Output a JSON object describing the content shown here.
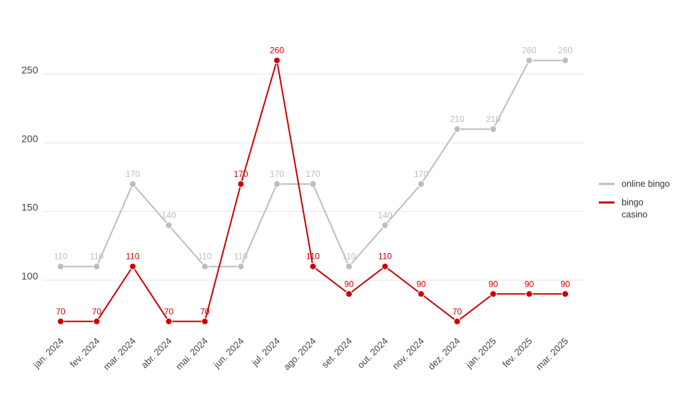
{
  "chart_data": {
    "type": "line",
    "categories": [
      "jan. 2024",
      "fev. 2024",
      "mar. 2024",
      "abr. 2024",
      "mai. 2024",
      "jun. 2024",
      "jul. 2024",
      "ago. 2024",
      "set. 2024",
      "out. 2024",
      "nov. 2024",
      "dez. 2024",
      "jan. 2025",
      "fev. 2025",
      "mar. 2025"
    ],
    "series": [
      {
        "name": "online bingo",
        "color": "#bdbdbd",
        "label_color": "#bdbdbd",
        "values": [
          110,
          110,
          170,
          140,
          110,
          110,
          170,
          170,
          110,
          140,
          170,
          210,
          210,
          260,
          260
        ]
      },
      {
        "name": "bingo casino",
        "name_lines": [
          "bingo",
          "casino"
        ],
        "color": "#cc0000",
        "label_color": "#cc0000",
        "values": [
          70,
          70,
          110,
          70,
          70,
          170,
          260,
          110,
          90,
          110,
          90,
          70,
          90,
          90,
          90
        ]
      }
    ],
    "y_ticks": [
      "100",
      "150",
      "200",
      "250"
    ],
    "ylim": [
      50,
      280
    ],
    "grid": true,
    "legend_position": "right",
    "title": "",
    "xlabel": "",
    "ylabel": ""
  }
}
